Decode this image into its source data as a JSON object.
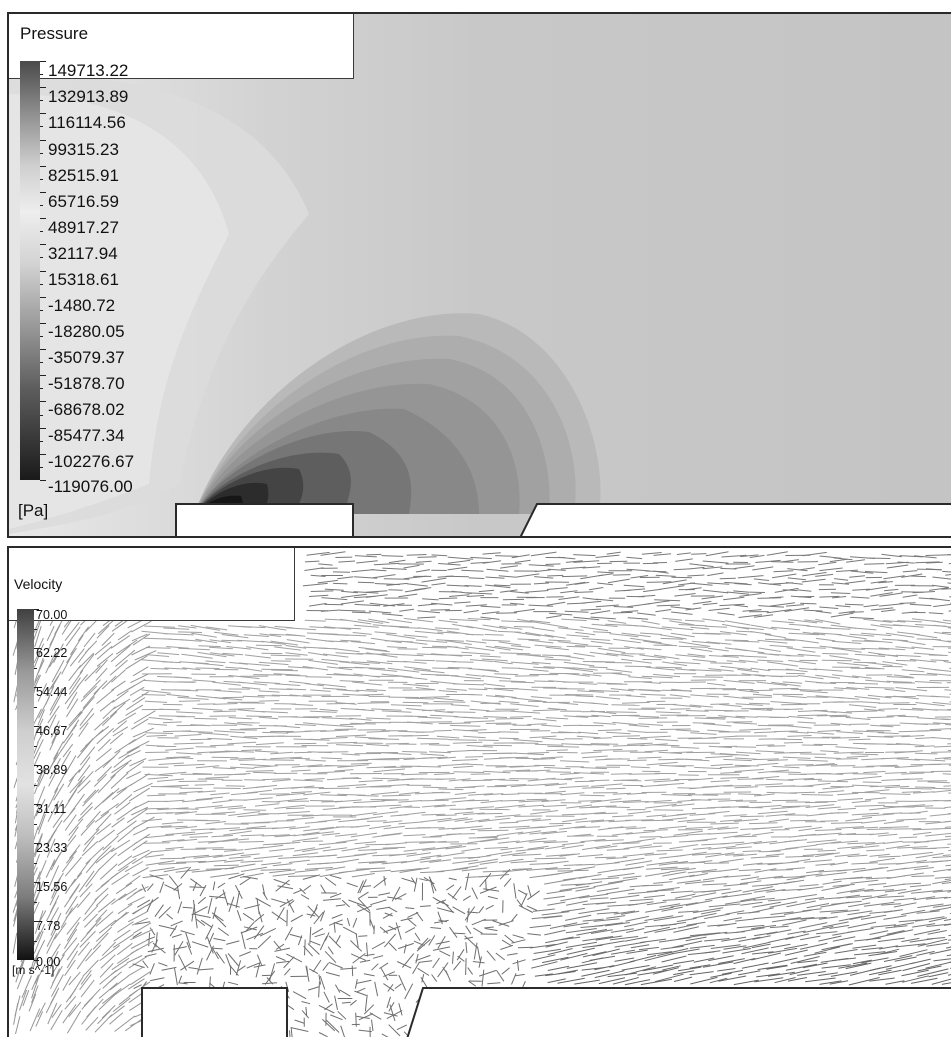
{
  "pressure": {
    "title": "Pressure",
    "unit": "[Pa]",
    "ticks": [
      "149713.22",
      "132913.89",
      "116114.56",
      "99315.23",
      "82515.91",
      "65716.59",
      "48917.27",
      "32117.94",
      "15318.61",
      "-1480.72",
      "-18280.05",
      "-35079.37",
      "-51878.70",
      "-68678.02",
      "-85477.34",
      "-102276.67",
      "-119076.00"
    ]
  },
  "velocity": {
    "title": "Velocity",
    "unit": "[m s^-1]",
    "ticks": [
      "70.00",
      "62.22",
      "54.44",
      "46.67",
      "38.89",
      "31.11",
      "23.33",
      "15.56",
      "7.78",
      "0.00"
    ]
  },
  "colors": {
    "pressure_background": "#c6c6c6",
    "velocity_background": "#ffffff",
    "frame": "#2a2a2a"
  }
}
